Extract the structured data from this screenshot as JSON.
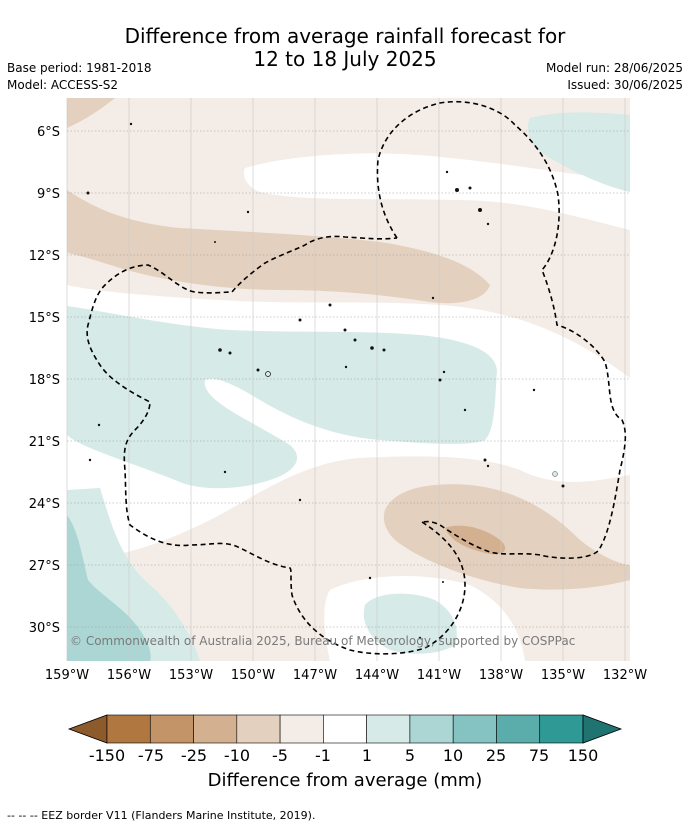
{
  "title": {
    "line1": "Difference from average rainfall forecast for",
    "line2": "12 to 18 July 2025"
  },
  "meta": {
    "base_period": "Base period: 1981-2018",
    "model": "Model: ACCESS-S2",
    "model_run": "Model run: 28/06/2025",
    "issued": "Issued: 30/06/2025"
  },
  "map": {
    "lat_labels": [
      "6°S",
      "9°S",
      "12°S",
      "15°S",
      "18°S",
      "21°S",
      "24°S",
      "27°S",
      "30°S"
    ],
    "lon_labels": [
      "159°W",
      "156°W",
      "153°W",
      "150°W",
      "147°W",
      "144°W",
      "141°W",
      "138°W",
      "135°W",
      "132°W"
    ],
    "copyright": "© Commonwealth of Australia 2025, Bureau of Meteorology, supported by COSPPac"
  },
  "colorbar": {
    "ticks": [
      "-150",
      "-75",
      "-25",
      "-10",
      "-5",
      "-1",
      "1",
      "5",
      "10",
      "25",
      "75",
      "150"
    ],
    "colors": [
      "#8c5a2b",
      "#b07840",
      "#c29468",
      "#d3b190",
      "#e4d0be",
      "#f4ece6",
      "#ffffff",
      "#d6eae8",
      "#acd6d4",
      "#84c3c1",
      "#5aadab",
      "#2e9995",
      "#1f7370"
    ],
    "title": "Difference from average (mm)"
  },
  "legend_note": "--  --  -- EEZ border V11 (Flanders Marine Institute, 2019)."
}
